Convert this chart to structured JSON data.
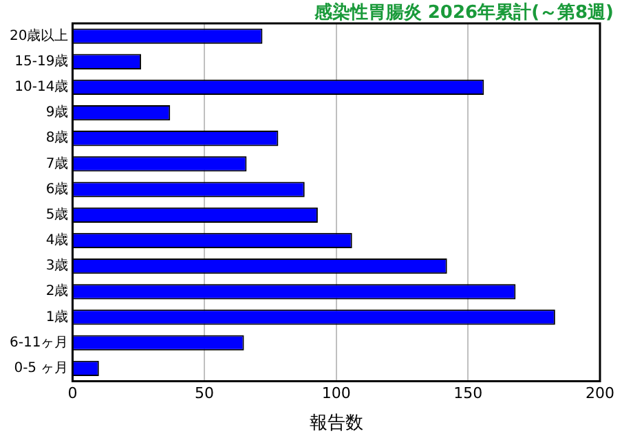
{
  "chart_data": {
    "type": "bar",
    "orientation": "horizontal",
    "title": "感染性胃腸炎 2026年累計(～第8週)",
    "xlabel": "報告数",
    "categories": [
      "20歳以上",
      "15-19歳",
      "10-14歳",
      "9歳",
      "8歳",
      "7歳",
      "6歳",
      "5歳",
      "4歳",
      "3歳",
      "2歳",
      "1歳",
      "6-11ヶ月",
      "0-5 ヶ月"
    ],
    "values": [
      72,
      26,
      156,
      37,
      78,
      66,
      88,
      93,
      106,
      142,
      168,
      183,
      65,
      10
    ],
    "color": "#0000ff",
    "xlim": [
      0,
      200
    ],
    "xticks": [
      0,
      50,
      100,
      150,
      200
    ],
    "grid": "x"
  }
}
